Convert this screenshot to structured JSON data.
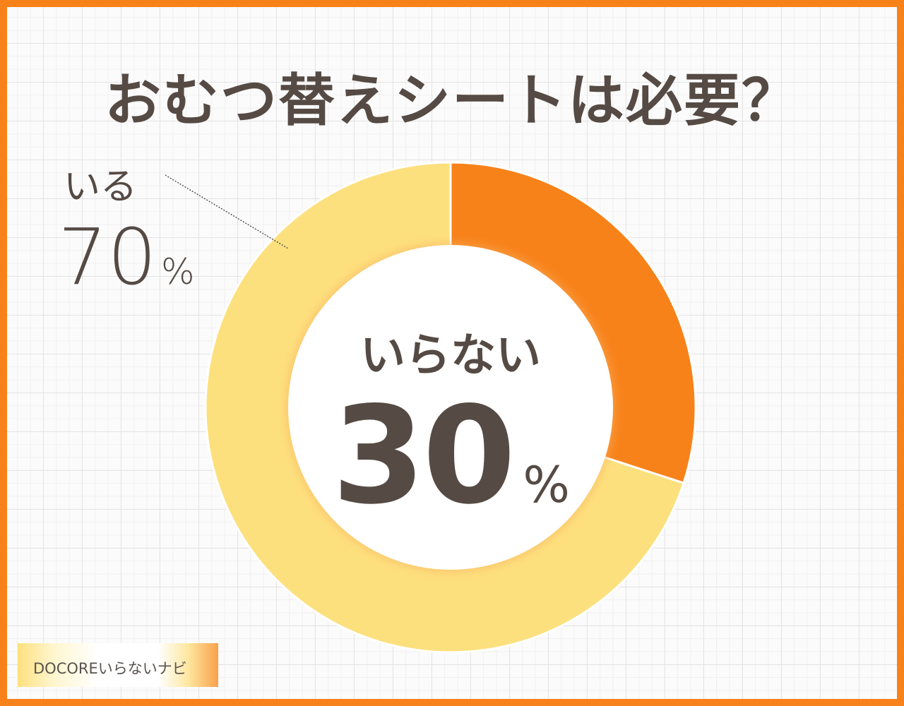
{
  "title": "おむつ替えシートは必要？",
  "chart_data": {
    "type": "pie",
    "donut": true,
    "categories": [
      "いらない",
      "いる"
    ],
    "values": [
      30,
      70
    ],
    "colors": [
      "#f8821a",
      "#fde07e"
    ],
    "data_labels": [
      {
        "label": "いらない",
        "value": "30",
        "unit": "%"
      },
      {
        "label": "いる",
        "value": "70",
        "unit": "%"
      }
    ]
  },
  "logo": "DOCOREいらないナビ"
}
